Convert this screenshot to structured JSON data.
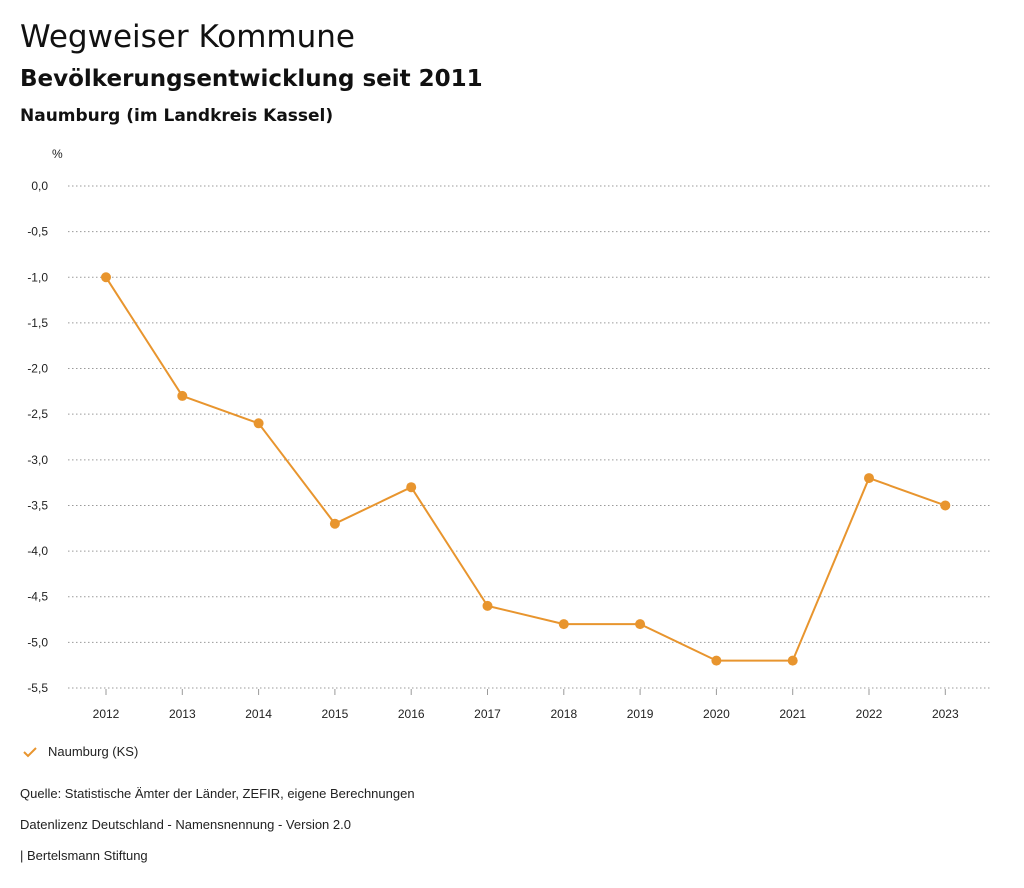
{
  "header": {
    "title": "Wegweiser Kommune",
    "subtitle": "Bevölkerungsentwicklung seit 2011",
    "region": "Naumburg (im Landkreis Kassel)"
  },
  "legend": {
    "icon": "checkmark-icon",
    "label": "Naumburg (KS)"
  },
  "footer": {
    "source": "Quelle: Statistische Ämter der Länder, ZEFIR, eigene Berechnungen",
    "license": "Datenlizenz Deutschland - Namensnennung - Version 2.0",
    "publisher": "| Bertelsmann Stiftung"
  },
  "colors": {
    "series": "#E8952E",
    "grid": "#9a9a9a"
  },
  "chart_data": {
    "type": "line",
    "title": "Bevölkerungsentwicklung seit 2011",
    "xlabel": "",
    "ylabel": "%",
    "categories": [
      "2012",
      "2013",
      "2014",
      "2015",
      "2016",
      "2017",
      "2018",
      "2019",
      "2020",
      "2021",
      "2022",
      "2023"
    ],
    "series": [
      {
        "name": "Naumburg (KS)",
        "values": [
          -1.0,
          -2.3,
          -2.6,
          -3.7,
          -3.3,
          -4.6,
          -4.8,
          -4.8,
          -5.2,
          -5.2,
          -3.2,
          -3.5
        ]
      }
    ],
    "ylim": [
      -5.5,
      0.0
    ],
    "yticks": [
      0.0,
      -0.5,
      -1.0,
      -1.5,
      -2.0,
      -2.5,
      -3.0,
      -3.5,
      -4.0,
      -4.5,
      -5.0,
      -5.5
    ],
    "ytick_labels": [
      "0,0",
      "-0,5",
      "-1,0",
      "-1,5",
      "-2,0",
      "-2,5",
      "-3,0",
      "-3,5",
      "-4,0",
      "-4,5",
      "-5,0",
      "-5,5"
    ],
    "grid": true,
    "legend_position": "bottom-left"
  }
}
